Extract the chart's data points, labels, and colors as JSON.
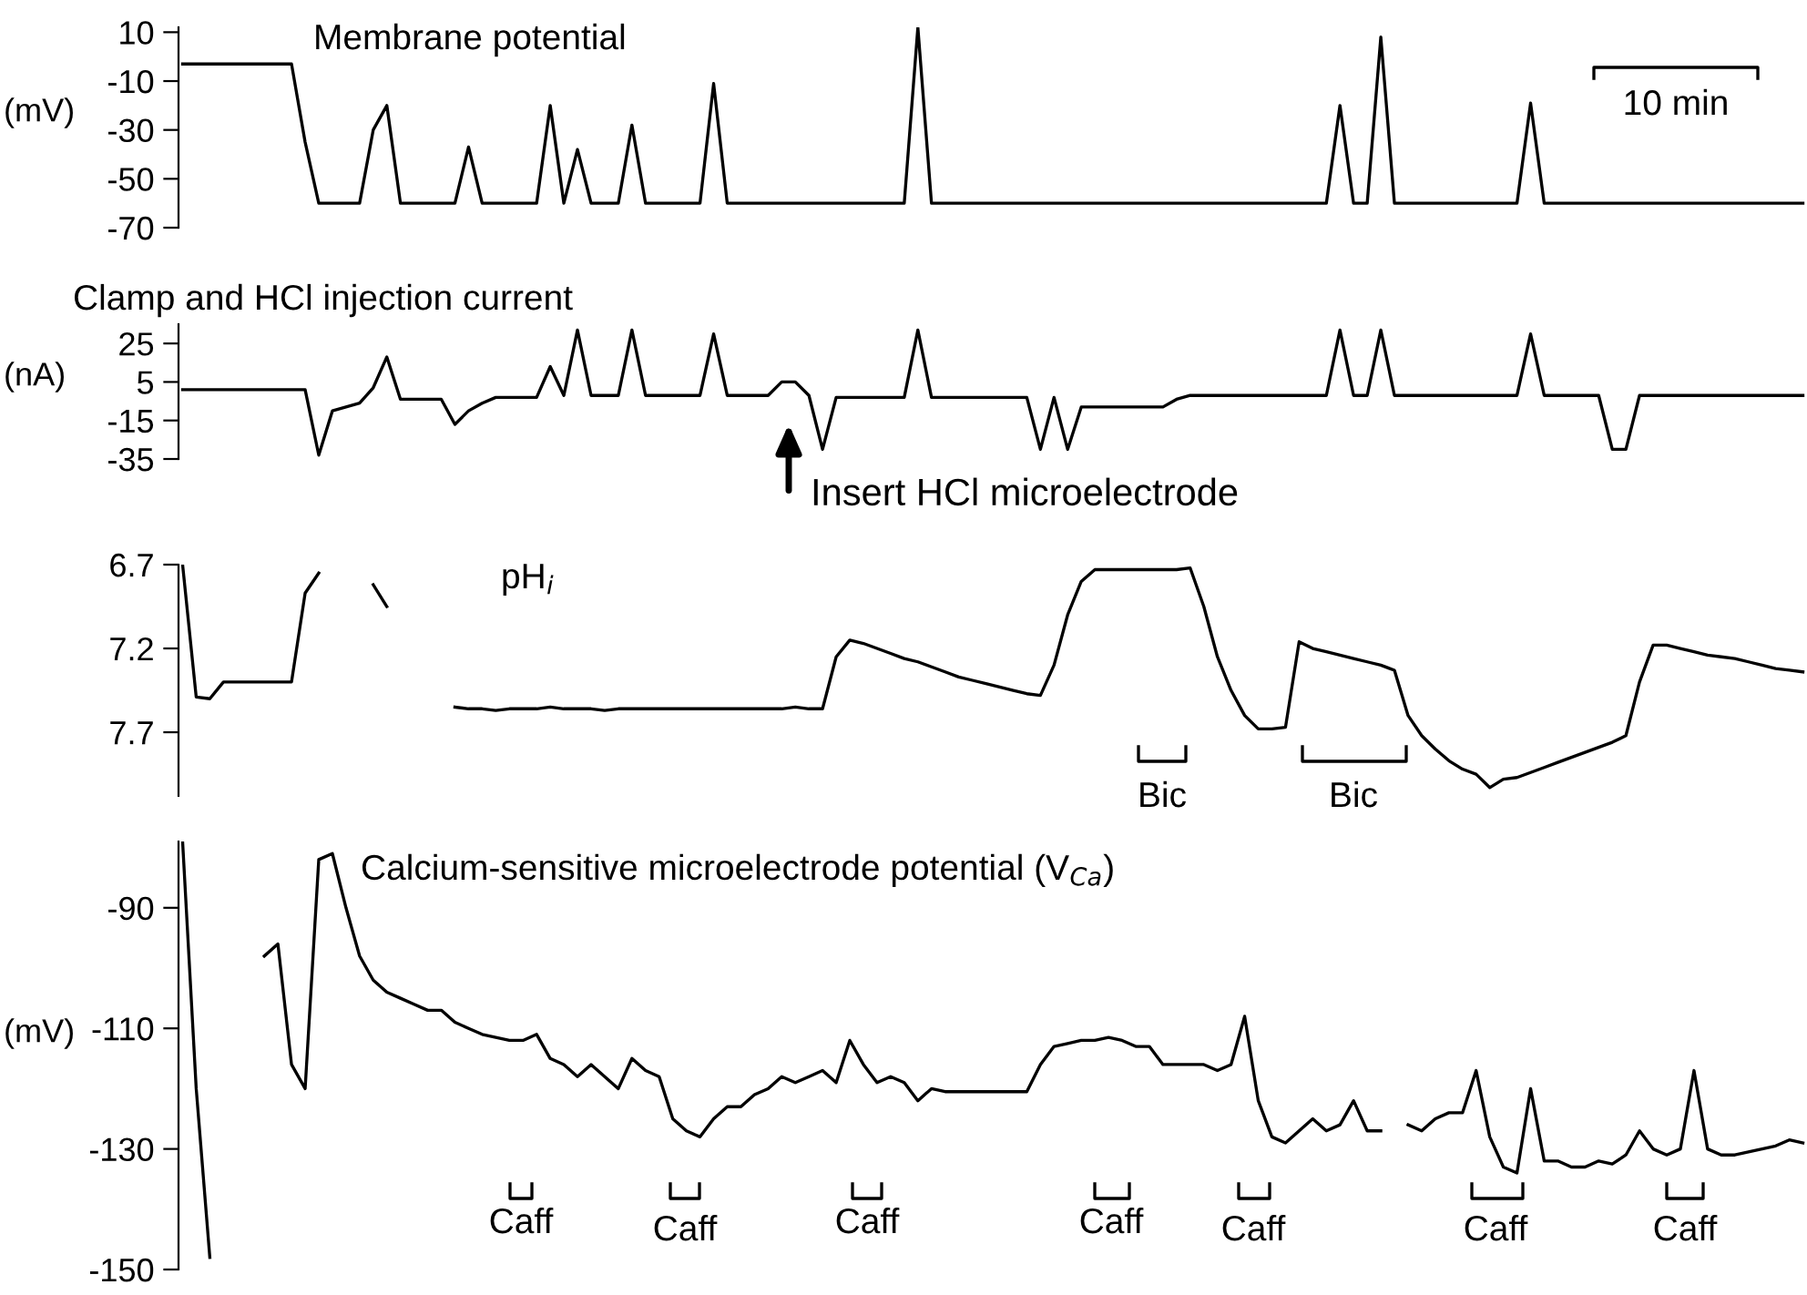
{
  "chart_data": [
    {
      "type": "line",
      "title": "Membrane potential",
      "ylabel": "(mV)",
      "ylim": [
        -70,
        12
      ],
      "yticks": [
        10,
        -10,
        -30,
        -50,
        -70
      ],
      "tick_labels": "y",
      "grid": false,
      "annotations": [
        "10 min"
      ],
      "categories": [
        null,
        null,
        null,
        null,
        null,
        null,
        null,
        null,
        null,
        null,
        null,
        null,
        null,
        null,
        null,
        null,
        null,
        null,
        null,
        null,
        null,
        null,
        null,
        null,
        null,
        null,
        null,
        null,
        null,
        null,
        null,
        null,
        null,
        null,
        null,
        null,
        null,
        null,
        null,
        null,
        null,
        null,
        null,
        null,
        null,
        null,
        null,
        null,
        null,
        null,
        null,
        null,
        null,
        null,
        null,
        null,
        null,
        null,
        null,
        null,
        null,
        null,
        null,
        null,
        null,
        null,
        null,
        null,
        null,
        null,
        null,
        null,
        null,
        null,
        null,
        null,
        null,
        null,
        null,
        null,
        null,
        null,
        null,
        null,
        null,
        null,
        null,
        null,
        null,
        null,
        null,
        null,
        null,
        null,
        null,
        null,
        null,
        null,
        null,
        null,
        null,
        null,
        null,
        null,
        null,
        null,
        null,
        null,
        null,
        null,
        null,
        null,
        null,
        null,
        null,
        null,
        null,
        null,
        null,
        null
      ],
      "series": [
        {
          "color": "#000000",
          "values": [
            -3,
            -3,
            -3,
            -3,
            -3,
            -3,
            -3,
            -3,
            -3,
            -35,
            -60,
            -60,
            -60,
            -60,
            -30,
            -20,
            -60,
            -60,
            -60,
            -60,
            -60,
            -37,
            -60,
            -60,
            -60,
            -60,
            -60,
            -20,
            -60,
            -38,
            -60,
            -60,
            -60,
            -28,
            -60,
            -60,
            -60,
            -60,
            -60,
            -11,
            -60,
            -60,
            -60,
            -60,
            -60,
            -60,
            -60,
            -60,
            -60,
            -60,
            -60,
            -60,
            -60,
            -60,
            12,
            -60,
            -60,
            -60,
            -60,
            -60,
            -60,
            -60,
            -60,
            -60,
            -60,
            -60,
            -60,
            -60,
            -60,
            -60,
            -60,
            -60,
            -60,
            -60,
            -60,
            -60,
            -60,
            -60,
            -60,
            -60,
            -60,
            -60,
            -60,
            -60,
            -60,
            -20,
            -60,
            -60,
            8,
            -60,
            -60,
            -60,
            -60,
            -60,
            -60,
            -60,
            -60,
            -60,
            -60,
            -19,
            -60,
            -60,
            -60,
            -60,
            -60,
            -60,
            -60,
            -60,
            -60,
            -60,
            -60,
            -60,
            -60,
            -60,
            -60,
            -60,
            -60,
            -60,
            -60,
            -60
          ]
        }
      ]
    },
    {
      "type": "line",
      "title": "Clamp and HCl injection current",
      "ylabel": "(nA)",
      "ylim": [
        -35,
        35
      ],
      "yticks": [
        25,
        5,
        -15,
        -35
      ],
      "tick_labels": "y",
      "grid": false,
      "annotations": [
        "Insert HCl microelectrode"
      ],
      "categories": [
        null,
        null,
        null,
        null,
        null,
        null,
        null,
        null,
        null,
        null,
        null,
        null,
        null,
        null,
        null,
        null,
        null,
        null,
        null,
        null,
        null,
        null,
        null,
        null,
        null,
        null,
        null,
        null,
        null,
        null,
        null,
        null,
        null,
        null,
        null,
        null,
        null,
        null,
        null,
        null,
        null,
        null,
        null,
        null,
        null,
        null,
        null,
        null,
        null,
        null,
        null,
        null,
        null,
        null,
        null,
        null,
        null,
        null,
        null,
        null,
        null,
        null,
        null,
        null,
        null,
        null,
        null,
        null,
        null,
        null,
        null,
        null,
        null,
        null,
        null,
        null,
        null,
        null,
        null,
        null,
        null,
        null,
        null,
        null,
        null,
        null,
        null,
        null,
        null,
        null,
        null,
        null,
        null,
        null,
        null,
        null,
        null,
        null,
        null,
        null,
        null,
        null,
        null,
        null,
        null,
        null,
        null,
        null,
        null,
        null,
        null,
        null,
        null,
        null,
        null,
        null,
        null,
        null,
        null,
        null
      ],
      "series": [
        {
          "color": "#000000",
          "values": [
            1,
            1,
            1,
            1,
            1,
            1,
            1,
            1,
            1,
            1,
            -33,
            -10,
            -8,
            -6,
            2,
            18,
            -4,
            -4,
            -4,
            -4,
            -17,
            -10,
            -6,
            -3,
            -3,
            -3,
            -3,
            13,
            -2,
            32,
            -2,
            -2,
            -2,
            32,
            -2,
            -2,
            -2,
            -2,
            -2,
            30,
            -2,
            -2,
            -2,
            -2,
            5,
            5,
            -2,
            -30,
            -3,
            -3,
            -3,
            -3,
            -3,
            -3,
            32,
            -3,
            -3,
            -3,
            -3,
            -3,
            -3,
            -3,
            -3,
            -30,
            -3,
            -30,
            -8,
            -8,
            -8,
            -8,
            -8,
            -8,
            -8,
            -4,
            -2,
            -2,
            -2,
            -2,
            -2,
            -2,
            -2,
            -2,
            -2,
            -2,
            -2,
            32,
            -2,
            -2,
            32,
            -2,
            -2,
            -2,
            -2,
            -2,
            -2,
            -2,
            -2,
            -2,
            -2,
            30,
            -2,
            -2,
            -2,
            -2,
            -2,
            -30,
            -30,
            -2,
            -2,
            -2,
            -2,
            -2,
            -2,
            -2,
            -2,
            -2,
            -2,
            -2,
            -2,
            -2
          ]
        }
      ]
    },
    {
      "type": "line",
      "title": "pH$_{i}$",
      "ylim": [
        8.08,
        6.7
      ],
      "yticks": [
        6.7,
        7.2,
        7.7
      ],
      "tick_labels": "y",
      "grid": false,
      "annotations": [
        "Bic",
        "Bic"
      ],
      "categories": [
        null,
        null,
        null,
        null,
        null,
        null,
        null,
        null,
        null,
        null,
        null,
        null,
        null,
        null,
        null,
        null,
        null,
        null,
        null,
        null,
        null,
        null,
        null,
        null,
        null,
        null,
        null,
        null,
        null,
        null,
        null,
        null,
        null,
        null,
        null,
        null,
        null,
        null,
        null,
        null,
        null,
        null,
        null,
        null,
        null,
        null,
        null,
        null,
        null,
        null,
        null,
        null,
        null,
        null,
        null,
        null,
        null,
        null,
        null,
        null,
        null,
        null,
        null,
        null,
        null,
        null,
        null,
        null,
        null,
        null,
        null,
        null,
        null,
        null,
        null,
        null,
        null,
        null,
        null,
        null,
        null,
        null,
        null,
        null,
        null,
        null,
        null,
        null,
        null,
        null,
        null,
        null,
        null,
        null,
        null,
        null,
        null,
        null,
        null,
        null,
        null,
        null,
        null,
        null,
        null,
        null,
        null,
        null,
        null,
        null,
        null,
        null,
        null,
        null,
        null,
        null,
        null,
        null,
        null,
        null
      ],
      "series": [
        {
          "color": "#000000",
          "values": [
            6.7,
            7.49,
            7.5,
            7.4,
            7.4,
            7.4,
            7.4,
            7.4,
            7.4,
            6.87,
            6.75,
            null,
            null,
            null,
            6.82,
            6.95,
            null,
            null,
            null,
            null,
            7.55,
            7.56,
            7.56,
            7.57,
            7.56,
            7.56,
            7.56,
            7.55,
            7.56,
            7.56,
            7.56,
            7.57,
            7.56,
            7.56,
            7.56,
            7.56,
            7.56,
            7.56,
            7.56,
            7.56,
            7.56,
            7.56,
            7.56,
            7.56,
            7.56,
            7.55,
            7.56,
            7.56,
            7.25,
            7.15,
            7.17,
            7.2,
            7.23,
            7.26,
            7.28,
            7.31,
            7.34,
            7.37,
            7.39,
            7.41,
            7.43,
            7.45,
            7.47,
            7.48,
            7.3,
            7.0,
            6.8,
            6.73,
            6.73,
            6.73,
            6.73,
            6.73,
            6.73,
            6.73,
            6.72,
            6.95,
            7.25,
            7.45,
            7.6,
            7.68,
            7.68,
            7.67,
            7.16,
            7.2,
            7.22,
            7.24,
            7.26,
            7.28,
            7.3,
            7.33,
            7.6,
            7.72,
            7.8,
            7.87,
            7.92,
            7.95,
            8.03,
            7.98,
            7.97,
            7.94,
            7.91,
            7.88,
            7.85,
            7.82,
            7.79,
            7.76,
            7.72,
            7.4,
            7.18,
            7.18,
            7.2,
            7.22,
            7.24,
            7.25,
            7.26,
            7.28,
            7.3,
            7.32,
            7.33,
            7.34
          ]
        }
      ]
    },
    {
      "type": "line",
      "title": "Calcium-sensitive microelectrode potential (V$_{Ca}$)",
      "ylabel": "(mV)",
      "ylim": [
        -150,
        -79
      ],
      "yticks": [
        -90,
        -110,
        -130,
        -150
      ],
      "tick_labels": "y",
      "grid": false,
      "annotations": [
        "Caff",
        "Caff",
        "Caff",
        "Caff",
        "Caff",
        "Caff",
        "Caff"
      ],
      "categories": [
        null,
        null,
        null,
        null,
        null,
        null,
        null,
        null,
        null,
        null,
        null,
        null,
        null,
        null,
        null,
        null,
        null,
        null,
        null,
        null,
        null,
        null,
        null,
        null,
        null,
        null,
        null,
        null,
        null,
        null,
        null,
        null,
        null,
        null,
        null,
        null,
        null,
        null,
        null,
        null,
        null,
        null,
        null,
        null,
        null,
        null,
        null,
        null,
        null,
        null,
        null,
        null,
        null,
        null,
        null,
        null,
        null,
        null,
        null,
        null,
        null,
        null,
        null,
        null,
        null,
        null,
        null,
        null,
        null,
        null,
        null,
        null,
        null,
        null,
        null,
        null,
        null,
        null,
        null,
        null,
        null,
        null,
        null,
        null,
        null,
        null,
        null,
        null,
        null,
        null,
        null,
        null,
        null,
        null,
        null,
        null,
        null,
        null,
        null,
        null,
        null,
        null,
        null,
        null,
        null,
        null,
        null,
        null,
        null,
        null,
        null,
        null,
        null,
        null,
        null,
        null,
        null,
        null,
        null,
        null
      ],
      "series": [
        {
          "color": "#000000",
          "values": [
            -79,
            -120,
            -148,
            null,
            null,
            null,
            -98,
            -96,
            -116,
            -120,
            -82,
            -81,
            -90,
            -98,
            -102,
            -104,
            -105,
            -106,
            -107,
            -107,
            -109,
            -110,
            -111,
            -111.5,
            -112,
            -112,
            -111,
            -115,
            -116,
            -118,
            -116,
            -118,
            -120,
            -115,
            -117,
            -118,
            -125,
            -127,
            -128,
            -125,
            -123,
            -123,
            -121,
            -120,
            -118,
            -119,
            -118,
            -117,
            -119,
            -112,
            -116,
            -119,
            -118,
            -119,
            -122,
            -120,
            -120.5,
            -120.5,
            -120.5,
            -120.5,
            -120.5,
            -120.5,
            -120.5,
            -116,
            -113,
            -112.5,
            -112,
            -112,
            -111.5,
            -112,
            -113,
            -113,
            -116,
            -116,
            -116,
            -116,
            -117,
            -116,
            -108,
            -122,
            -128,
            -129,
            -127,
            -125,
            -127,
            -126,
            -122,
            -127,
            -127,
            null,
            -126,
            -127,
            -125,
            -124,
            -124,
            -117,
            -128,
            -133,
            -134,
            -120,
            -132,
            -132,
            -133,
            -133,
            -132,
            -132.5,
            -131,
            -127,
            -130,
            -131,
            -130,
            -117,
            -130,
            -131,
            -131,
            -130.5,
            -130,
            -129.5,
            -128.5,
            -129
          ]
        }
      ]
    }
  ]
}
